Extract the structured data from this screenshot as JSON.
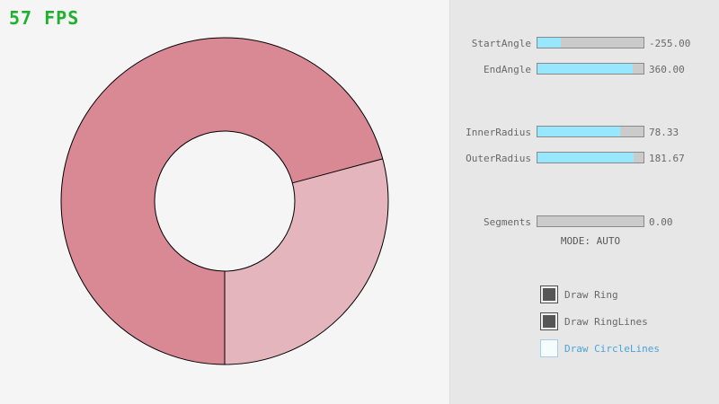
{
  "fps_text": "57 FPS",
  "colors": {
    "background": "#f5f5f5",
    "panel": "#e7e7e7",
    "ring_light": "#e4b5bc",
    "ring_dark": "#d98994",
    "ring_outline": "#000000",
    "slider_fill": "#97e8ff",
    "slider_track": "#cbcbcb",
    "slider_border": "#8a8a8a",
    "label_text": "#686868",
    "fps_green": "#1fb12e",
    "circlelines_blue": "#4ba3d4"
  },
  "ring": {
    "start_angle": -255.0,
    "end_angle": 360.0,
    "inner_radius": 78.33,
    "outer_radius": 181.67,
    "segments": 0.0
  },
  "sliders": [
    {
      "label": "StartAngle",
      "value_text": "-255.00",
      "fill_percent": 21.7
    },
    {
      "label": "EndAngle",
      "value_text": "360.00",
      "fill_percent": 90.0
    },
    {
      "label": "InnerRadius",
      "value_text": "78.33",
      "fill_percent": 78.3
    },
    {
      "label": "OuterRadius",
      "value_text": "181.67",
      "fill_percent": 90.8
    },
    {
      "label": "Segments",
      "value_text": "0.00",
      "fill_percent": 0
    }
  ],
  "mode_text": "MODE: AUTO",
  "checkboxes": [
    {
      "label": "Draw Ring",
      "checked": true
    },
    {
      "label": "Draw RingLines",
      "checked": true
    },
    {
      "label": "Draw CircleLines",
      "checked": false
    }
  ]
}
